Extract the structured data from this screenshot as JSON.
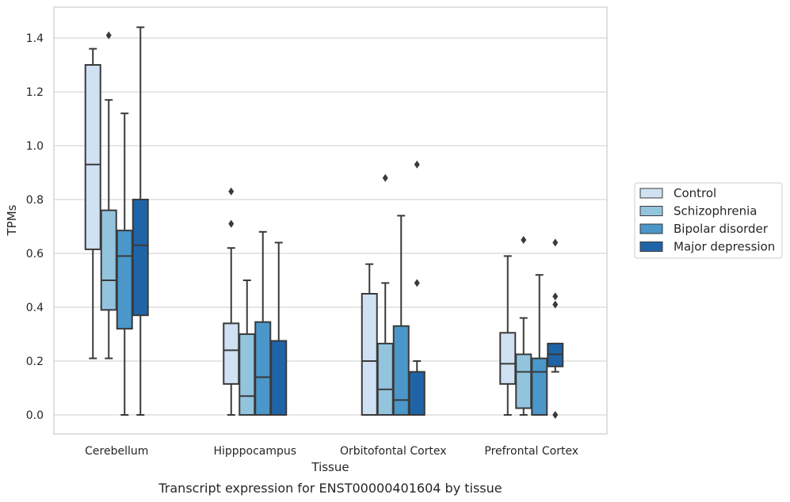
{
  "caption": "Transcript expression for ENST00000401604 by tissue",
  "chart_data": {
    "type": "box",
    "title": "",
    "xlabel": "Tissue",
    "ylabel": "TPMs",
    "ylim": [
      -0.07,
      1.52
    ],
    "yticks": [
      "0.0",
      "0.2",
      "0.4",
      "0.6",
      "0.8",
      "1.0",
      "1.2",
      "1.4"
    ],
    "categories": [
      "Cerebellum",
      "Hipppocampus",
      "Orbitofontal Cortex",
      "Prefrontal Cortex"
    ],
    "grid": true,
    "legend_position": "right",
    "series": [
      {
        "name": "Control",
        "color": "#cfe1f2",
        "boxes": [
          {
            "whislo": 0.21,
            "q1": 0.615,
            "med": 0.93,
            "q3": 1.3,
            "whishi": 1.36,
            "fliers": []
          },
          {
            "whislo": 0.0,
            "q1": 0.115,
            "med": 0.24,
            "q3": 0.34,
            "whishi": 0.62,
            "fliers": [
              0.71,
              0.83
            ]
          },
          {
            "whislo": 0.0,
            "q1": 0.0,
            "med": 0.2,
            "q3": 0.45,
            "whishi": 0.56,
            "fliers": []
          },
          {
            "whislo": 0.0,
            "q1": 0.115,
            "med": 0.19,
            "q3": 0.305,
            "whishi": 0.59,
            "fliers": []
          }
        ]
      },
      {
        "name": "Schizophrenia",
        "color": "#93c4de",
        "boxes": [
          {
            "whislo": 0.21,
            "q1": 0.39,
            "med": 0.5,
            "q3": 0.76,
            "whishi": 1.17,
            "fliers": [
              1.41
            ]
          },
          {
            "whislo": 0.0,
            "q1": 0.0,
            "med": 0.07,
            "q3": 0.3,
            "whishi": 0.5,
            "fliers": []
          },
          {
            "whislo": 0.0,
            "q1": 0.0,
            "med": 0.095,
            "q3": 0.265,
            "whishi": 0.49,
            "fliers": [
              0.88
            ]
          },
          {
            "whislo": 0.0,
            "q1": 0.025,
            "med": 0.16,
            "q3": 0.225,
            "whishi": 0.36,
            "fliers": [
              0.65
            ]
          }
        ]
      },
      {
        "name": "Bipolar disorder",
        "color": "#4b97c9",
        "boxes": [
          {
            "whislo": 0.0,
            "q1": 0.32,
            "med": 0.59,
            "q3": 0.685,
            "whishi": 1.12,
            "fliers": []
          },
          {
            "whislo": 0.0,
            "q1": 0.0,
            "med": 0.14,
            "q3": 0.345,
            "whishi": 0.68,
            "fliers": []
          },
          {
            "whislo": 0.0,
            "q1": 0.0,
            "med": 0.055,
            "q3": 0.33,
            "whishi": 0.74,
            "fliers": []
          },
          {
            "whislo": 0.0,
            "q1": 0.0,
            "med": 0.16,
            "q3": 0.21,
            "whishi": 0.52,
            "fliers": []
          }
        ]
      },
      {
        "name": "Major depression",
        "color": "#2064a8",
        "boxes": [
          {
            "whislo": 0.0,
            "q1": 0.37,
            "med": 0.63,
            "q3": 0.8,
            "whishi": 1.44,
            "fliers": []
          },
          {
            "whislo": 0.0,
            "q1": 0.0,
            "med": 0.0,
            "q3": 0.275,
            "whishi": 0.64,
            "fliers": []
          },
          {
            "whislo": 0.0,
            "q1": 0.0,
            "med": 0.0,
            "q3": 0.16,
            "whishi": 0.2,
            "fliers": [
              0.49,
              0.93
            ]
          },
          {
            "whislo": 0.16,
            "q1": 0.18,
            "med": 0.225,
            "q3": 0.265,
            "whishi": 0.265,
            "fliers": [
              0.0,
              0.41,
              0.44,
              0.64
            ]
          }
        ]
      }
    ]
  }
}
